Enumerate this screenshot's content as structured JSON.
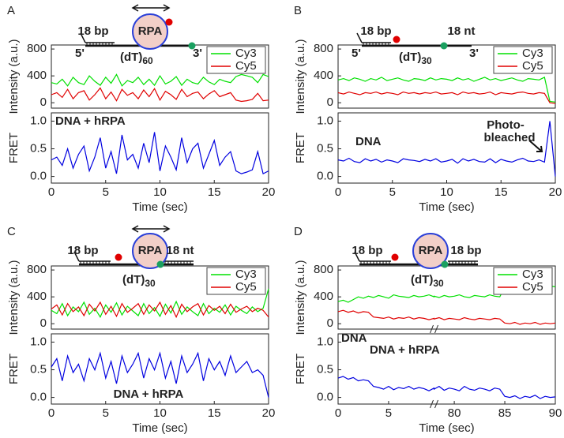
{
  "chart_data": [
    {
      "type": "line",
      "panel_label": "A",
      "ylabel": "Intensity (a.u.)",
      "legend": "upper right",
      "diagram": {
        "left": "18 bp",
        "rpa": "RPA",
        "five": "5'",
        "three": "3'",
        "strand": "(dT)",
        "sub": "60"
      },
      "xlim": [
        0,
        20
      ],
      "ylim": [
        -80,
        860
      ],
      "yticks": [
        0,
        400,
        800
      ],
      "x": [
        0,
        0.5,
        1,
        1.5,
        2,
        2.5,
        3,
        3.5,
        4,
        4.5,
        5,
        5.5,
        6,
        6.5,
        7,
        7.5,
        8,
        8.5,
        9,
        9.5,
        10,
        10.5,
        11,
        11.5,
        12,
        12.5,
        13,
        13.5,
        14,
        14.5,
        15,
        15.5,
        16,
        16.5,
        17,
        17.5,
        18,
        18.5,
        19,
        19.5,
        20
      ],
      "series": [
        {
          "name": "Cy3",
          "color": "#00e000",
          "values": [
            300,
            280,
            350,
            250,
            380,
            300,
            270,
            400,
            320,
            260,
            380,
            290,
            420,
            250,
            330,
            300,
            380,
            270,
            350,
            260,
            400,
            280,
            320,
            390,
            260,
            350,
            300,
            280,
            380,
            310,
            270,
            350,
            320,
            300,
            390,
            420,
            400,
            380,
            300,
            420,
            390
          ]
        },
        {
          "name": "Cy5",
          "color": "#e00000",
          "values": [
            120,
            150,
            80,
            200,
            60,
            150,
            180,
            40,
            120,
            220,
            60,
            160,
            30,
            200,
            110,
            150,
            60,
            190,
            90,
            210,
            40,
            170,
            120,
            50,
            200,
            90,
            140,
            160,
            60,
            130,
            180,
            90,
            120,
            150,
            40,
            20,
            30,
            50,
            140,
            30,
            40
          ]
        }
      ]
    },
    {
      "type": "line",
      "ylabel": "FRET",
      "xlabel": "Time (sec)",
      "annotations": [
        "DNA + hRPA"
      ],
      "xlim": [
        0,
        20
      ],
      "xticks": [
        0,
        5,
        10,
        15,
        20
      ],
      "ylim": [
        -0.12,
        1.15
      ],
      "yticks": [
        {
          "value": 0,
          "label": "0.0"
        },
        {
          "value": 0.5,
          "label": "0.5"
        },
        {
          "value": 1,
          "label": "1.0"
        }
      ],
      "x": [
        0,
        0.5,
        1,
        1.5,
        2,
        2.5,
        3,
        3.5,
        4,
        4.5,
        5,
        5.5,
        6,
        6.5,
        7,
        7.5,
        8,
        8.5,
        9,
        9.5,
        10,
        10.5,
        11,
        11.5,
        12,
        12.5,
        13,
        13.5,
        14,
        14.5,
        15,
        15.5,
        16,
        16.5,
        17,
        17.5,
        18,
        18.5,
        19,
        19.5,
        20
      ],
      "series": [
        {
          "color": "#0000e0",
          "values": [
            0.3,
            0.35,
            0.2,
            0.5,
            0.15,
            0.4,
            0.55,
            0.1,
            0.35,
            0.7,
            0.15,
            0.45,
            0.05,
            0.75,
            0.3,
            0.4,
            0.15,
            0.6,
            0.25,
            0.8,
            0.1,
            0.55,
            0.35,
            0.12,
            0.7,
            0.25,
            0.5,
            0.6,
            0.15,
            0.4,
            0.65,
            0.2,
            0.35,
            0.45,
            0.1,
            0.05,
            0.08,
            0.12,
            0.45,
            0.05,
            0.1
          ]
        }
      ]
    },
    {
      "type": "line",
      "panel_label": "B",
      "ylabel": "Intensity (a.u.)",
      "legend": "upper right",
      "diagram": {
        "left": "18 bp",
        "right": "18 nt",
        "five": "5'",
        "three": "3'",
        "strand": "(dT)",
        "sub": "30"
      },
      "xlim": [
        0,
        20
      ],
      "ylim": [
        -80,
        860
      ],
      "yticks": [
        0,
        400,
        800
      ],
      "x": [
        0,
        0.5,
        1,
        1.5,
        2,
        2.5,
        3,
        3.5,
        4,
        4.5,
        5,
        5.5,
        6,
        6.5,
        7,
        7.5,
        8,
        8.5,
        9,
        9.5,
        10,
        10.5,
        11,
        11.5,
        12,
        12.5,
        13,
        13.5,
        14,
        14.5,
        15,
        15.5,
        16,
        16.5,
        17,
        17.5,
        18,
        18.5,
        19,
        19.5,
        20
      ],
      "series": [
        {
          "name": "Cy3",
          "color": "#00e000",
          "values": [
            340,
            360,
            330,
            370,
            350,
            320,
            360,
            340,
            380,
            330,
            350,
            370,
            340,
            320,
            360,
            350,
            330,
            370,
            340,
            360,
            350,
            330,
            370,
            340,
            360,
            320,
            350,
            380,
            340,
            360,
            330,
            350,
            370,
            340,
            320,
            360,
            350,
            340,
            380,
            20,
            10
          ]
        },
        {
          "name": "Cy5",
          "color": "#e00000",
          "values": [
            150,
            130,
            160,
            140,
            120,
            150,
            140,
            160,
            130,
            150,
            140,
            120,
            160,
            140,
            150,
            130,
            150,
            140,
            160,
            130,
            140,
            150,
            120,
            160,
            140,
            150,
            130,
            140,
            160,
            120,
            150,
            140,
            130,
            150,
            160,
            140,
            130,
            150,
            140,
            0,
            -10
          ]
        }
      ]
    },
    {
      "type": "line",
      "ylabel": "FRET",
      "xlabel": "Time (sec)",
      "annotations": [
        "DNA",
        "Photo-",
        "bleached"
      ],
      "xlim": [
        0,
        20
      ],
      "xticks": [
        0,
        5,
        10,
        15,
        20
      ],
      "ylim": [
        -0.12,
        1.15
      ],
      "yticks": [
        {
          "value": 0,
          "label": "0.0"
        },
        {
          "value": 0.5,
          "label": "0.5"
        },
        {
          "value": 1,
          "label": "1.0"
        }
      ],
      "x": [
        0,
        0.5,
        1,
        1.5,
        2,
        2.5,
        3,
        3.5,
        4,
        4.5,
        5,
        5.5,
        6,
        6.5,
        7,
        7.5,
        8,
        8.5,
        9,
        9.5,
        10,
        10.5,
        11,
        11.5,
        12,
        12.5,
        13,
        13.5,
        14,
        14.5,
        15,
        15.5,
        16,
        16.5,
        17,
        17.5,
        18,
        18.5,
        19,
        19.5,
        20
      ],
      "series": [
        {
          "color": "#0000e0",
          "values": [
            0.3,
            0.28,
            0.33,
            0.27,
            0.25,
            0.32,
            0.28,
            0.31,
            0.26,
            0.3,
            0.28,
            0.25,
            0.32,
            0.3,
            0.29,
            0.27,
            0.31,
            0.28,
            0.32,
            0.26,
            0.28,
            0.31,
            0.24,
            0.32,
            0.28,
            0.31,
            0.27,
            0.26,
            0.32,
            0.25,
            0.31,
            0.28,
            0.26,
            0.3,
            0.33,
            0.28,
            0.27,
            0.3,
            0.26,
            1.0,
            0.0
          ]
        }
      ]
    },
    {
      "type": "line",
      "panel_label": "C",
      "ylabel": "Intensity (a.u.)",
      "legend": "upper right",
      "diagram": {
        "left": "18 bp",
        "rpa": "RPA",
        "right": "18 nt",
        "strand": "(dT)",
        "sub": "30"
      },
      "xlim": [
        0,
        20
      ],
      "ylim": [
        -80,
        860
      ],
      "yticks": [
        0,
        400,
        800
      ],
      "x": [
        0,
        0.5,
        1,
        1.5,
        2,
        2.5,
        3,
        3.5,
        4,
        4.5,
        5,
        5.5,
        6,
        6.5,
        7,
        7.5,
        8,
        8.5,
        9,
        9.5,
        10,
        10.5,
        11,
        11.5,
        12,
        12.5,
        13,
        13.5,
        14,
        14.5,
        15,
        15.5,
        16,
        16.5,
        17,
        17.5,
        18,
        18.5,
        19,
        19.5,
        20
      ],
      "series": [
        {
          "name": "Cy3",
          "color": "#00e000",
          "values": [
            200,
            150,
            300,
            120,
            250,
            180,
            320,
            140,
            230,
            100,
            280,
            170,
            310,
            130,
            260,
            190,
            120,
            300,
            150,
            240,
            110,
            290,
            160,
            330,
            140,
            250,
            180,
            120,
            300,
            150,
            230,
            170,
            280,
            130,
            260,
            200,
            150,
            250,
            180,
            230,
            520
          ]
        },
        {
          "name": "Cy5",
          "color": "#e00000",
          "values": [
            220,
            280,
            130,
            300,
            180,
            250,
            120,
            290,
            190,
            320,
            140,
            260,
            110,
            300,
            170,
            230,
            300,
            140,
            280,
            190,
            320,
            140,
            270,
            100,
            290,
            180,
            250,
            300,
            130,
            270,
            200,
            260,
            150,
            290,
            170,
            220,
            260,
            180,
            230,
            200,
            100
          ]
        }
      ]
    },
    {
      "type": "line",
      "ylabel": "FRET",
      "xlabel": "Time (sec)",
      "annotations": [
        "DNA + hRPA"
      ],
      "xlim": [
        0,
        20
      ],
      "xticks": [
        0,
        5,
        10,
        15,
        20
      ],
      "ylim": [
        -0.12,
        1.15
      ],
      "yticks": [
        {
          "value": 0,
          "label": "0.0"
        },
        {
          "value": 0.5,
          "label": "0.5"
        },
        {
          "value": 1,
          "label": "1.0"
        }
      ],
      "x": [
        0,
        0.5,
        1,
        1.5,
        2,
        2.5,
        3,
        3.5,
        4,
        4.5,
        5,
        5.5,
        6,
        6.5,
        7,
        7.5,
        8,
        8.5,
        9,
        9.5,
        10,
        10.5,
        11,
        11.5,
        12,
        12.5,
        13,
        13.5,
        14,
        14.5,
        15,
        15.5,
        16,
        16.5,
        17,
        17.5,
        18,
        18.5,
        19,
        19.5,
        20
      ],
      "series": [
        {
          "color": "#0000e0",
          "values": [
            0.55,
            0.7,
            0.3,
            0.75,
            0.45,
            0.6,
            0.3,
            0.7,
            0.5,
            0.8,
            0.35,
            0.65,
            0.25,
            0.75,
            0.45,
            0.6,
            0.8,
            0.35,
            0.7,
            0.5,
            0.8,
            0.35,
            0.65,
            0.25,
            0.75,
            0.45,
            0.6,
            0.8,
            0.3,
            0.7,
            0.5,
            0.65,
            0.4,
            0.75,
            0.45,
            0.55,
            0.65,
            0.45,
            0.5,
            0.4,
            0.0
          ]
        }
      ]
    },
    {
      "type": "line",
      "panel_label": "D",
      "ylabel": "Intensity (a.u.)",
      "legend": "upper right",
      "diagram": {
        "left": "18 bp",
        "rpa": "RPA",
        "right": "18 bp",
        "strand": "(dT)",
        "sub": "30"
      },
      "xlim": [
        0,
        90
      ],
      "xbreak": [
        9.5,
        78
      ],
      "ylim": [
        -80,
        860
      ],
      "yticks": [
        0,
        400,
        800
      ],
      "x": [
        0,
        0.5,
        1,
        1.5,
        2,
        2.5,
        3,
        3.5,
        4,
        4.5,
        5,
        5.5,
        6,
        6.5,
        7,
        7.5,
        8,
        8.5,
        9,
        9.5,
        78,
        78.5,
        79,
        79.5,
        80,
        80.5,
        81,
        81.5,
        82,
        82.5,
        83,
        83.5,
        84,
        84.5,
        85,
        85.5,
        86,
        86.5,
        87,
        87.5,
        88,
        88.5,
        89,
        89.5,
        90
      ],
      "series": [
        {
          "name": "Cy3",
          "color": "#00e000",
          "values": [
            330,
            350,
            320,
            360,
            400,
            380,
            410,
            390,
            420,
            400,
            380,
            430,
            410,
            400,
            390,
            420,
            400,
            410,
            430,
            400,
            410,
            390,
            420,
            400,
            410,
            430,
            400,
            390,
            420,
            410,
            400,
            430,
            410,
            400,
            540,
            560,
            530,
            550,
            570,
            540,
            560,
            550,
            530,
            560,
            550
          ]
        },
        {
          "name": "Cy5",
          "color": "#e00000",
          "values": [
            180,
            200,
            170,
            190,
            160,
            180,
            170,
            100,
            90,
            80,
            100,
            70,
            90,
            80,
            100,
            70,
            90,
            80,
            60,
            80,
            70,
            90,
            60,
            80,
            70,
            60,
            90,
            70,
            60,
            80,
            70,
            60,
            80,
            70,
            10,
            0,
            20,
            -10,
            10,
            0,
            20,
            -10,
            10,
            0,
            10
          ]
        }
      ]
    },
    {
      "type": "line",
      "ylabel": "FRET",
      "xlabel": "Time (sec)",
      "annotations": [
        "DNA",
        "DNA + hRPA"
      ],
      "xlim": [
        0,
        90
      ],
      "xbreak": [
        9.5,
        78
      ],
      "xticks": [
        0,
        5,
        80,
        85,
        90
      ],
      "ylim": [
        -0.12,
        1.15
      ],
      "yticks": [
        {
          "value": 0,
          "label": "0.0"
        },
        {
          "value": 0.5,
          "label": "0.5"
        },
        {
          "value": 1,
          "label": "1.0"
        }
      ],
      "x": [
        0,
        0.5,
        1,
        1.5,
        2,
        2.5,
        3,
        3.5,
        4,
        4.5,
        5,
        5.5,
        6,
        6.5,
        7,
        7.5,
        8,
        8.5,
        9,
        9.5,
        78,
        78.5,
        79,
        79.5,
        80,
        80.5,
        81,
        81.5,
        82,
        82.5,
        83,
        83.5,
        84,
        84.5,
        85,
        85.5,
        86,
        86.5,
        87,
        87.5,
        88,
        88.5,
        89,
        89.5,
        90
      ],
      "series": [
        {
          "color": "#0000e0",
          "values": [
            0.35,
            0.38,
            0.33,
            0.36,
            0.3,
            0.32,
            0.3,
            0.2,
            0.18,
            0.15,
            0.2,
            0.14,
            0.18,
            0.16,
            0.2,
            0.15,
            0.18,
            0.16,
            0.12,
            0.17,
            0.15,
            0.2,
            0.13,
            0.17,
            0.15,
            0.12,
            0.2,
            0.15,
            0.13,
            0.17,
            0.15,
            0.12,
            0.17,
            0.15,
            0.02,
            0.0,
            0.03,
            -0.02,
            0.02,
            0.0,
            0.04,
            -0.02,
            0.02,
            0.0,
            0.01
          ]
        }
      ]
    }
  ]
}
